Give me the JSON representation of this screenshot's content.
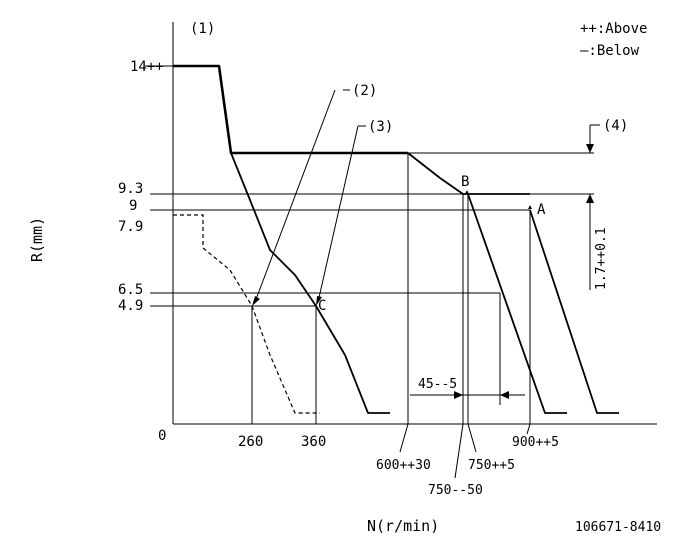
{
  "legend": {
    "above": "++:Above",
    "below": "—:Below"
  },
  "axes": {
    "y_label": "R(mm)",
    "x_label": "N(r/min)",
    "origin": "0"
  },
  "y_ticks": [
    "14++",
    "9.3",
    "9",
    "7.9",
    "6.5",
    "4.9"
  ],
  "x_ticks": [
    "260",
    "360",
    "600++30",
    "750++5",
    "750--50",
    "900++5"
  ],
  "callouts": [
    "(1)",
    "(2)",
    "(3)",
    "(4)"
  ],
  "points": [
    "A",
    "B",
    "C"
  ],
  "dimensions": {
    "speed_gap": "45--5",
    "rack_gap": "1.7++0.1"
  },
  "drawing_number": "106671-8410"
}
